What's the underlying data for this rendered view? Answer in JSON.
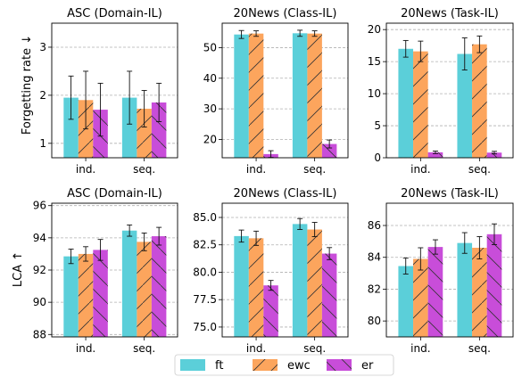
{
  "legend": [
    {
      "name": "ft",
      "color": "#5bcfd9",
      "hatch": "none"
    },
    {
      "name": "ewc",
      "color": "#fca55d",
      "hatch": "/"
    },
    {
      "name": "er",
      "color": "#c84dd9",
      "hatch": "\\"
    }
  ],
  "row_labels": [
    "Forgetting rate ↓",
    "LCA ↑"
  ],
  "chart_data": [
    {
      "type": "bar",
      "title": "ASC (Domain-IL)",
      "categories": [
        "ind.",
        "seq."
      ],
      "ylim": [
        0.7,
        3.5
      ],
      "yticks": [
        1,
        2,
        3
      ],
      "grid": true,
      "series": [
        {
          "name": "ft",
          "values": [
            1.95,
            1.95
          ],
          "errors": [
            0.45,
            0.55
          ]
        },
        {
          "name": "ewc",
          "values": [
            1.9,
            1.72
          ],
          "errors": [
            0.6,
            0.38
          ]
        },
        {
          "name": "er",
          "values": [
            1.7,
            1.85
          ],
          "errors": [
            0.55,
            0.4
          ]
        }
      ]
    },
    {
      "type": "bar",
      "title": "20News (Class-IL)",
      "categories": [
        "ind.",
        "seq."
      ],
      "ylim": [
        14,
        58
      ],
      "yticks": [
        20,
        30,
        40,
        50
      ],
      "grid": true,
      "series": [
        {
          "name": "ft",
          "values": [
            54.3,
            54.7
          ],
          "errors": [
            1.3,
            1.0
          ]
        },
        {
          "name": "ewc",
          "values": [
            54.6,
            54.6
          ],
          "errors": [
            0.9,
            0.9
          ]
        },
        {
          "name": "er",
          "values": [
            15.2,
            18.5
          ],
          "errors": [
            1.1,
            1.3
          ]
        }
      ]
    },
    {
      "type": "bar",
      "title": "20News (Task-IL)",
      "categories": [
        "ind.",
        "seq."
      ],
      "ylim": [
        0,
        21
      ],
      "yticks": [
        0,
        5,
        10,
        15,
        20
      ],
      "grid": true,
      "series": [
        {
          "name": "ft",
          "values": [
            17.0,
            16.2
          ],
          "errors": [
            1.3,
            2.5
          ]
        },
        {
          "name": "ewc",
          "values": [
            16.6,
            17.7
          ],
          "errors": [
            1.6,
            1.3
          ]
        },
        {
          "name": "er",
          "values": [
            0.85,
            0.8
          ],
          "errors": [
            0.2,
            0.2
          ]
        }
      ]
    },
    {
      "type": "bar",
      "title": "ASC (Domain-IL)",
      "categories": [
        "ind.",
        "seq."
      ],
      "ylim": [
        87.85,
        96.15
      ],
      "yticks": [
        88,
        90,
        92,
        94,
        96
      ],
      "grid": true,
      "series": [
        {
          "name": "ft",
          "values": [
            92.85,
            94.45
          ],
          "errors": [
            0.45,
            0.35
          ]
        },
        {
          "name": "ewc",
          "values": [
            93.0,
            93.75
          ],
          "errors": [
            0.45,
            0.55
          ]
        },
        {
          "name": "er",
          "values": [
            93.25,
            94.1
          ],
          "errors": [
            0.65,
            0.55
          ]
        }
      ]
    },
    {
      "type": "bar",
      "title": "20News (Class-IL)",
      "categories": [
        "ind.",
        "seq."
      ],
      "ylim": [
        74.1,
        86.3
      ],
      "yticks": [
        75.0,
        77.5,
        80.0,
        82.5,
        85.0
      ],
      "tick_decimals": 1,
      "grid": true,
      "series": [
        {
          "name": "ft",
          "values": [
            83.3,
            84.4
          ],
          "errors": [
            0.55,
            0.5
          ]
        },
        {
          "name": "ewc",
          "values": [
            83.1,
            83.9
          ],
          "errors": [
            0.65,
            0.65
          ]
        },
        {
          "name": "er",
          "values": [
            78.8,
            81.7
          ],
          "errors": [
            0.45,
            0.55
          ]
        }
      ]
    },
    {
      "type": "bar",
      "title": "20News (Task-IL)",
      "categories": [
        "ind.",
        "seq."
      ],
      "ylim": [
        79.0,
        87.4
      ],
      "yticks": [
        80,
        82,
        84,
        86
      ],
      "grid": true,
      "series": [
        {
          "name": "ft",
          "values": [
            83.45,
            84.9
          ],
          "errors": [
            0.5,
            0.65
          ]
        },
        {
          "name": "ewc",
          "values": [
            83.9,
            84.6
          ],
          "errors": [
            0.7,
            0.7
          ]
        },
        {
          "name": "er",
          "values": [
            84.65,
            85.45
          ],
          "errors": [
            0.45,
            0.65
          ]
        }
      ]
    }
  ]
}
